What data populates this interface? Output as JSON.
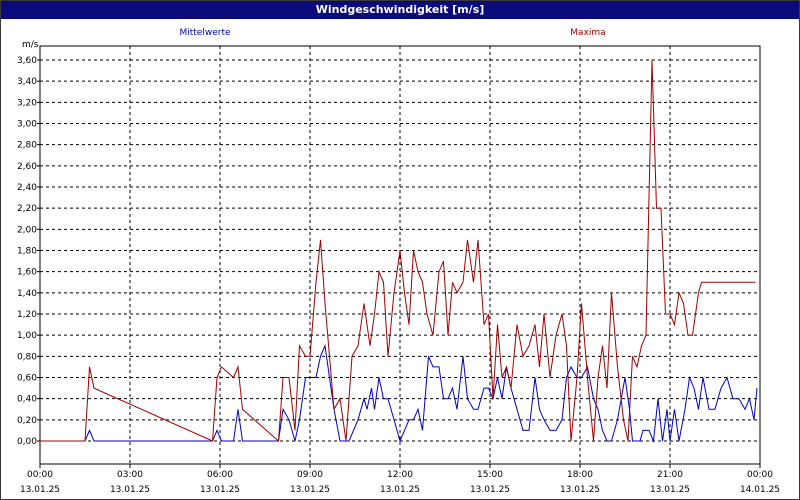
{
  "window": {
    "title": "Windgeschwindigkeit [m/s]"
  },
  "chart_data": {
    "type": "line",
    "title": "Windgeschwindigkeit [m/s]",
    "ylabel": "m/s",
    "ylim": [
      0,
      3.6
    ],
    "xlim_hours": [
      0,
      24
    ],
    "grid": true,
    "legend_placement": "top",
    "y_ticks": [
      "0,00",
      "0,20",
      "0,40",
      "0,60",
      "0,80",
      "1,00",
      "1,20",
      "1,40",
      "1,60",
      "1,80",
      "2,00",
      "2,20",
      "2,40",
      "2,60",
      "2,80",
      "3,00",
      "3,20",
      "3,40",
      "3,60"
    ],
    "x_ticks": [
      {
        "time": "00:00",
        "date": "13.01.25"
      },
      {
        "time": "03:00",
        "date": "13.01.25"
      },
      {
        "time": "06:00",
        "date": "13.01.25"
      },
      {
        "time": "09:00",
        "date": "13.01.25"
      },
      {
        "time": "12:00",
        "date": "13.01.25"
      },
      {
        "time": "15:00",
        "date": "13.01.25"
      },
      {
        "time": "18:00",
        "date": "13.01.25"
      },
      {
        "time": "21:00",
        "date": "13.01.25"
      },
      {
        "time": "00:00",
        "date": "14.01.25"
      }
    ],
    "series": [
      {
        "name": "Mittelwerte",
        "color": "#0000c0",
        "x": [
          0,
          1.5,
          1.65,
          1.8,
          5.75,
          5.9,
          6.05,
          6.45,
          6.6,
          6.75,
          7.95,
          8.1,
          8.3,
          8.5,
          8.65,
          8.85,
          9.0,
          9.2,
          9.35,
          9.5,
          9.65,
          9.8,
          10.0,
          10.3,
          10.6,
          10.8,
          10.9,
          11.05,
          11.15,
          11.3,
          11.45,
          11.6,
          11.8,
          12.0,
          12.15,
          12.3,
          12.45,
          12.6,
          12.75,
          12.95,
          13.1,
          13.3,
          13.45,
          13.6,
          13.75,
          13.9,
          14.1,
          14.25,
          14.45,
          14.6,
          14.8,
          14.95,
          15.1,
          15.25,
          15.4,
          15.55,
          15.7,
          15.9,
          16.1,
          16.3,
          16.5,
          16.65,
          16.8,
          17.0,
          17.2,
          17.4,
          17.55,
          17.7,
          17.9,
          18.05,
          18.25,
          18.45,
          18.6,
          18.75,
          18.9,
          19.05,
          19.25,
          19.5,
          19.65,
          19.75,
          19.9,
          20.0,
          20.1,
          20.3,
          20.45,
          20.6,
          20.75,
          20.9,
          21.0,
          21.15,
          21.3,
          21.5,
          21.65,
          21.8,
          21.95,
          22.1,
          22.3,
          22.5,
          22.7,
          22.9,
          23.1,
          23.3,
          23.5,
          23.65,
          23.8,
          23.9
        ],
        "values": [
          0,
          0,
          0.1,
          0,
          0,
          0.1,
          0,
          0,
          0.3,
          0,
          0,
          0.3,
          0.2,
          0,
          0.2,
          0.6,
          0.6,
          0.6,
          0.8,
          0.9,
          0.6,
          0.3,
          0,
          0,
          0.2,
          0.4,
          0.3,
          0.5,
          0.3,
          0.6,
          0.4,
          0.4,
          0.2,
          0,
          0.1,
          0.2,
          0.2,
          0.3,
          0.1,
          0.8,
          0.7,
          0.7,
          0.4,
          0.4,
          0.5,
          0.3,
          0.8,
          0.4,
          0.3,
          0.3,
          0.5,
          0.5,
          0.4,
          0.6,
          0.4,
          0.7,
          0.5,
          0.3,
          0.1,
          0.1,
          0.6,
          0.3,
          0.2,
          0.1,
          0.1,
          0.2,
          0.6,
          0.7,
          0.6,
          0.6,
          0.7,
          0.4,
          0.3,
          0.1,
          0,
          0,
          0.2,
          0.6,
          0.3,
          0,
          0,
          0,
          0.1,
          0.1,
          0,
          0.4,
          0,
          0.3,
          0,
          0.3,
          0,
          0.3,
          0.6,
          0.5,
          0.3,
          0.6,
          0.3,
          0.3,
          0.5,
          0.6,
          0.4,
          0.4,
          0.3,
          0.4,
          0.2,
          0.5
        ]
      },
      {
        "name": "Maxima",
        "color": "#a00000",
        "x": [
          0,
          1.5,
          1.65,
          1.8,
          5.75,
          5.9,
          6.05,
          6.45,
          6.6,
          6.75,
          7.95,
          8.1,
          8.3,
          8.5,
          8.65,
          8.85,
          9.0,
          9.2,
          9.35,
          9.5,
          9.65,
          9.8,
          10.0,
          10.2,
          10.4,
          10.6,
          10.8,
          11.0,
          11.15,
          11.3,
          11.45,
          11.6,
          11.8,
          12.0,
          12.15,
          12.3,
          12.45,
          12.6,
          12.75,
          12.9,
          13.1,
          13.3,
          13.45,
          13.6,
          13.75,
          13.9,
          14.1,
          14.25,
          14.45,
          14.6,
          14.8,
          14.95,
          15.1,
          15.25,
          15.4,
          15.55,
          15.7,
          15.9,
          16.1,
          16.3,
          16.5,
          16.65,
          16.8,
          17.0,
          17.2,
          17.4,
          17.55,
          17.7,
          17.9,
          18.05,
          18.25,
          18.45,
          18.6,
          18.75,
          18.9,
          19.05,
          19.25,
          19.45,
          19.6,
          19.75,
          19.9,
          20.05,
          20.2,
          20.4,
          20.55,
          20.7,
          20.85,
          21.0,
          21.15,
          21.3,
          21.45,
          21.6,
          21.75,
          21.95,
          22.05,
          22.15,
          22.3,
          22.5,
          22.65,
          22.85,
          23.0,
          23.2,
          23.45,
          23.65,
          23.85
        ],
        "values": [
          0,
          0,
          0.7,
          0.5,
          0,
          0.6,
          0.7,
          0.6,
          0.7,
          0.3,
          0,
          0.6,
          0.6,
          0.1,
          0.9,
          0.8,
          0.8,
          1.5,
          1.9,
          1.3,
          0.8,
          0.3,
          0.4,
          0,
          0.8,
          0.9,
          1.3,
          0.9,
          1.2,
          1.6,
          1.5,
          0.8,
          1.4,
          1.8,
          1.4,
          1.1,
          1.8,
          1.6,
          1.5,
          1.2,
          1.0,
          1.6,
          1.7,
          1.0,
          1.5,
          1.4,
          1.5,
          1.9,
          1.5,
          1.9,
          1.1,
          1.2,
          0.4,
          1.1,
          0.6,
          0.7,
          0.5,
          1.1,
          0.8,
          0.9,
          1.1,
          0.7,
          1.2,
          0.6,
          1.0,
          1.2,
          0.9,
          0,
          0.6,
          1.3,
          0.6,
          0,
          0.6,
          0.9,
          0.5,
          1.4,
          0.7,
          0.2,
          0,
          0.8,
          0.7,
          0.9,
          1.0,
          3.6,
          2.2,
          2.2,
          1.2,
          1.2,
          1.1,
          1.4,
          1.3,
          1.0,
          1.0,
          1.4,
          1.5,
          1.5,
          1.5,
          1.5,
          1.5,
          1.5,
          1.5,
          1.5,
          1.5,
          1.5,
          1.5
        ]
      }
    ]
  }
}
